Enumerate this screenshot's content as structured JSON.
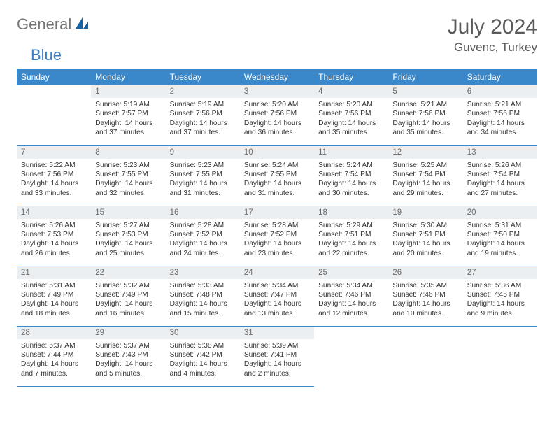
{
  "logo": {
    "text1": "General",
    "text2": "Blue"
  },
  "title": "July 2024",
  "location": "Guvenc, Turkey",
  "colors": {
    "header_bg": "#3a87c9",
    "header_text": "#ffffff",
    "daynum_bg": "#eceff1",
    "daynum_text": "#6b6b6b",
    "body_text": "#333333",
    "cell_border": "#3a87c9",
    "logo_gray": "#757575",
    "logo_blue": "#3a7fc4",
    "page_bg": "#ffffff"
  },
  "weekdays": [
    "Sunday",
    "Monday",
    "Tuesday",
    "Wednesday",
    "Thursday",
    "Friday",
    "Saturday"
  ],
  "start_offset": 1,
  "days": [
    {
      "n": 1,
      "sr": "5:19 AM",
      "ss": "7:57 PM",
      "dl": "14 hours and 37 minutes."
    },
    {
      "n": 2,
      "sr": "5:19 AM",
      "ss": "7:56 PM",
      "dl": "14 hours and 37 minutes."
    },
    {
      "n": 3,
      "sr": "5:20 AM",
      "ss": "7:56 PM",
      "dl": "14 hours and 36 minutes."
    },
    {
      "n": 4,
      "sr": "5:20 AM",
      "ss": "7:56 PM",
      "dl": "14 hours and 35 minutes."
    },
    {
      "n": 5,
      "sr": "5:21 AM",
      "ss": "7:56 PM",
      "dl": "14 hours and 35 minutes."
    },
    {
      "n": 6,
      "sr": "5:21 AM",
      "ss": "7:56 PM",
      "dl": "14 hours and 34 minutes."
    },
    {
      "n": 7,
      "sr": "5:22 AM",
      "ss": "7:56 PM",
      "dl": "14 hours and 33 minutes."
    },
    {
      "n": 8,
      "sr": "5:23 AM",
      "ss": "7:55 PM",
      "dl": "14 hours and 32 minutes."
    },
    {
      "n": 9,
      "sr": "5:23 AM",
      "ss": "7:55 PM",
      "dl": "14 hours and 31 minutes."
    },
    {
      "n": 10,
      "sr": "5:24 AM",
      "ss": "7:55 PM",
      "dl": "14 hours and 31 minutes."
    },
    {
      "n": 11,
      "sr": "5:24 AM",
      "ss": "7:54 PM",
      "dl": "14 hours and 30 minutes."
    },
    {
      "n": 12,
      "sr": "5:25 AM",
      "ss": "7:54 PM",
      "dl": "14 hours and 29 minutes."
    },
    {
      "n": 13,
      "sr": "5:26 AM",
      "ss": "7:54 PM",
      "dl": "14 hours and 27 minutes."
    },
    {
      "n": 14,
      "sr": "5:26 AM",
      "ss": "7:53 PM",
      "dl": "14 hours and 26 minutes."
    },
    {
      "n": 15,
      "sr": "5:27 AM",
      "ss": "7:53 PM",
      "dl": "14 hours and 25 minutes."
    },
    {
      "n": 16,
      "sr": "5:28 AM",
      "ss": "7:52 PM",
      "dl": "14 hours and 24 minutes."
    },
    {
      "n": 17,
      "sr": "5:28 AM",
      "ss": "7:52 PM",
      "dl": "14 hours and 23 minutes."
    },
    {
      "n": 18,
      "sr": "5:29 AM",
      "ss": "7:51 PM",
      "dl": "14 hours and 22 minutes."
    },
    {
      "n": 19,
      "sr": "5:30 AM",
      "ss": "7:51 PM",
      "dl": "14 hours and 20 minutes."
    },
    {
      "n": 20,
      "sr": "5:31 AM",
      "ss": "7:50 PM",
      "dl": "14 hours and 19 minutes."
    },
    {
      "n": 21,
      "sr": "5:31 AM",
      "ss": "7:49 PM",
      "dl": "14 hours and 18 minutes."
    },
    {
      "n": 22,
      "sr": "5:32 AM",
      "ss": "7:49 PM",
      "dl": "14 hours and 16 minutes."
    },
    {
      "n": 23,
      "sr": "5:33 AM",
      "ss": "7:48 PM",
      "dl": "14 hours and 15 minutes."
    },
    {
      "n": 24,
      "sr": "5:34 AM",
      "ss": "7:47 PM",
      "dl": "14 hours and 13 minutes."
    },
    {
      "n": 25,
      "sr": "5:34 AM",
      "ss": "7:46 PM",
      "dl": "14 hours and 12 minutes."
    },
    {
      "n": 26,
      "sr": "5:35 AM",
      "ss": "7:46 PM",
      "dl": "14 hours and 10 minutes."
    },
    {
      "n": 27,
      "sr": "5:36 AM",
      "ss": "7:45 PM",
      "dl": "14 hours and 9 minutes."
    },
    {
      "n": 28,
      "sr": "5:37 AM",
      "ss": "7:44 PM",
      "dl": "14 hours and 7 minutes."
    },
    {
      "n": 29,
      "sr": "5:37 AM",
      "ss": "7:43 PM",
      "dl": "14 hours and 5 minutes."
    },
    {
      "n": 30,
      "sr": "5:38 AM",
      "ss": "7:42 PM",
      "dl": "14 hours and 4 minutes."
    },
    {
      "n": 31,
      "sr": "5:39 AM",
      "ss": "7:41 PM",
      "dl": "14 hours and 2 minutes."
    }
  ],
  "labels": {
    "sunrise": "Sunrise:",
    "sunset": "Sunset:",
    "daylight": "Daylight:"
  }
}
